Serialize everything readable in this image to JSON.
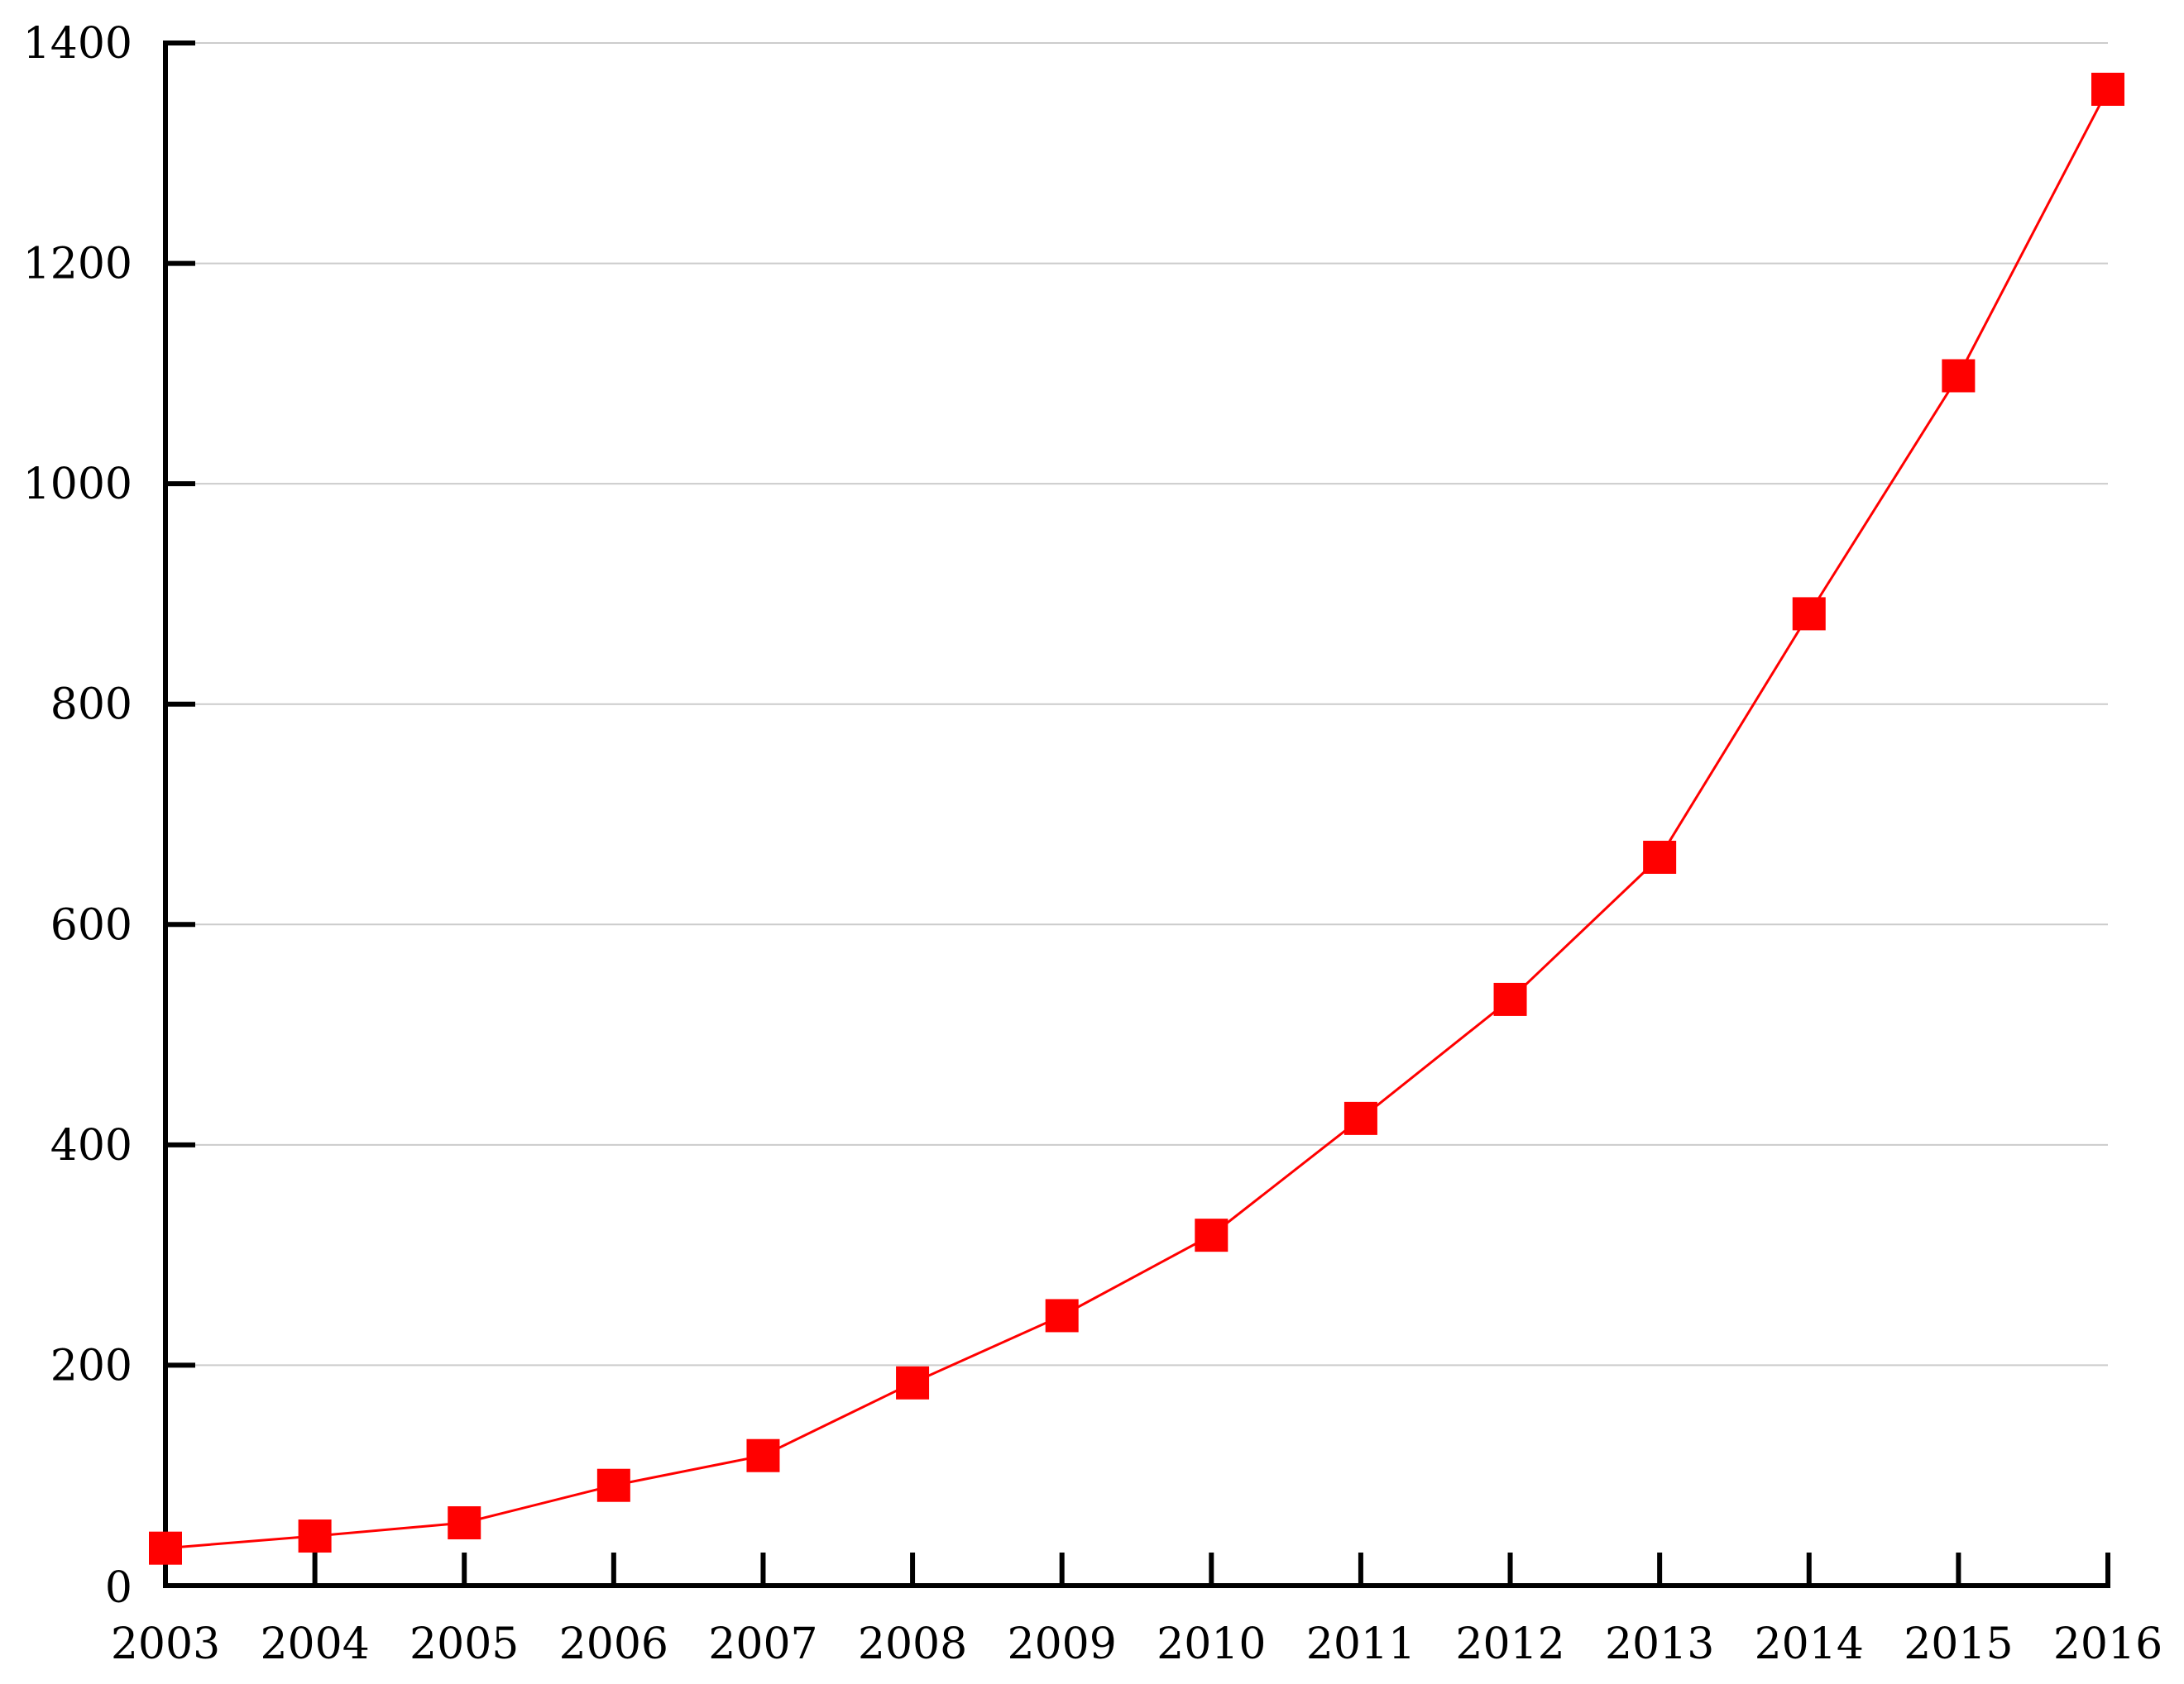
{
  "chart_data": {
    "type": "line",
    "title": "",
    "xlabel": "",
    "ylabel": "",
    "x": [
      "2003",
      "2004",
      "2005",
      "2006",
      "2007",
      "2008",
      "2009",
      "2010",
      "2011",
      "2012",
      "2013",
      "2014",
      "2015",
      "2016"
    ],
    "series": [
      {
        "values": [
          34,
          45,
          57,
          91,
          118,
          184,
          245,
          318,
          424,
          532,
          661,
          882,
          1098,
          1358
        ],
        "color": "#ff0000",
        "marker": "square"
      }
    ],
    "ylim": [
      0,
      1400
    ],
    "yticks": [
      "0",
      "200",
      "400",
      "600",
      "800",
      "1000",
      "1200",
      "1400"
    ],
    "grid": "horizontal",
    "legend": "none",
    "axis_color": "#000000",
    "grid_color": "#cccccc"
  }
}
